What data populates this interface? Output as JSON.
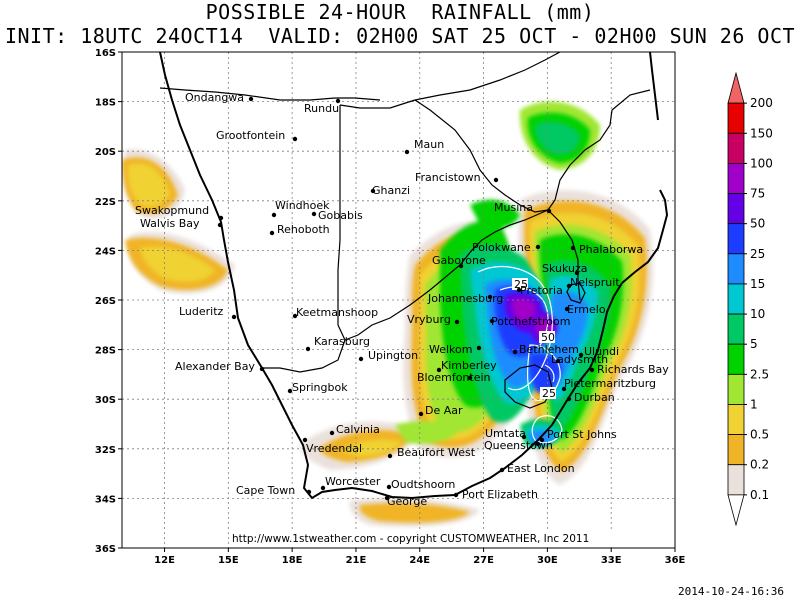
{
  "header": {
    "title": "POSSIBLE 24-HOUR  RAINFALL (mm)",
    "subtitle": "INIT: 18UTC 24OCT14  VALID: 02H00 SAT 25 OCT - 02H00 SUN 26 OCT"
  },
  "axes": {
    "lat_labels": [
      "16S",
      "18S",
      "20S",
      "22S",
      "24S",
      "26S",
      "28S",
      "30S",
      "32S",
      "34S",
      "36S"
    ],
    "lon_labels": [
      "12E",
      "15E",
      "18E",
      "21E",
      "24E",
      "27E",
      "30E",
      "33E",
      "36E"
    ]
  },
  "cities": [
    {
      "name": "Ondangwa"
    },
    {
      "name": "Rundu"
    },
    {
      "name": "Grootfontein"
    },
    {
      "name": "Maun"
    },
    {
      "name": "Francistown"
    },
    {
      "name": "Ghanzi"
    },
    {
      "name": "Swakopmund"
    },
    {
      "name": "Walvis Bay"
    },
    {
      "name": "Windhoek"
    },
    {
      "name": "Gobabis"
    },
    {
      "name": "Rehoboth"
    },
    {
      "name": "Musina"
    },
    {
      "name": "Polokwane"
    },
    {
      "name": "Phalaborwa"
    },
    {
      "name": "Gaborone"
    },
    {
      "name": "Skukuza"
    },
    {
      "name": "Nelspruit"
    },
    {
      "name": "Pretoria"
    },
    {
      "name": "Johannesburg"
    },
    {
      "name": "Ermelo"
    },
    {
      "name": "Potchefstroom"
    },
    {
      "name": "Luderitz"
    },
    {
      "name": "Keetmanshoop"
    },
    {
      "name": "Vryburg"
    },
    {
      "name": "Welkom"
    },
    {
      "name": "Bethlehem"
    },
    {
      "name": "Ladysmith"
    },
    {
      "name": "Ulundi"
    },
    {
      "name": "Karasburg"
    },
    {
      "name": "Upington"
    },
    {
      "name": "Kimberley"
    },
    {
      "name": "Richards Bay"
    },
    {
      "name": "Alexander Bay"
    },
    {
      "name": "Bloemfontein"
    },
    {
      "name": "Pietermaritzburg"
    },
    {
      "name": "Springbok"
    },
    {
      "name": "Durban"
    },
    {
      "name": "De Aar"
    },
    {
      "name": "Calvinia"
    },
    {
      "name": "Umtata"
    },
    {
      "name": "Port St Johns"
    },
    {
      "name": "Vredendal"
    },
    {
      "name": "Queenstown"
    },
    {
      "name": "Beaufort West"
    },
    {
      "name": "East London"
    },
    {
      "name": "Worcester"
    },
    {
      "name": "Oudtshoorn"
    },
    {
      "name": "Cape Town"
    },
    {
      "name": "George"
    },
    {
      "name": "Port Elizabeth"
    }
  ],
  "contour_labels": [
    "25",
    "50",
    "25"
  ],
  "legend": {
    "levels": [
      "200",
      "150",
      "100",
      "75",
      "50",
      "25",
      "15",
      "10",
      "5",
      "2.5",
      "1",
      "0.5",
      "0.2",
      "0.1"
    ],
    "colors": [
      "#f06464",
      "#e60000",
      "#c80064",
      "#a000c8",
      "#6400e6",
      "#1e3cff",
      "#1e8cff",
      "#00c8d2",
      "#00c864",
      "#00d200",
      "#a0e632",
      "#f0d232",
      "#f0b428",
      "#ebe1dc",
      "#ffffff"
    ]
  },
  "footer": {
    "credit": "http://www.1stweather.com - copyright CUSTOMWEATHER, Inc 2011",
    "timestamp": "2014-10-24-16:36"
  }
}
